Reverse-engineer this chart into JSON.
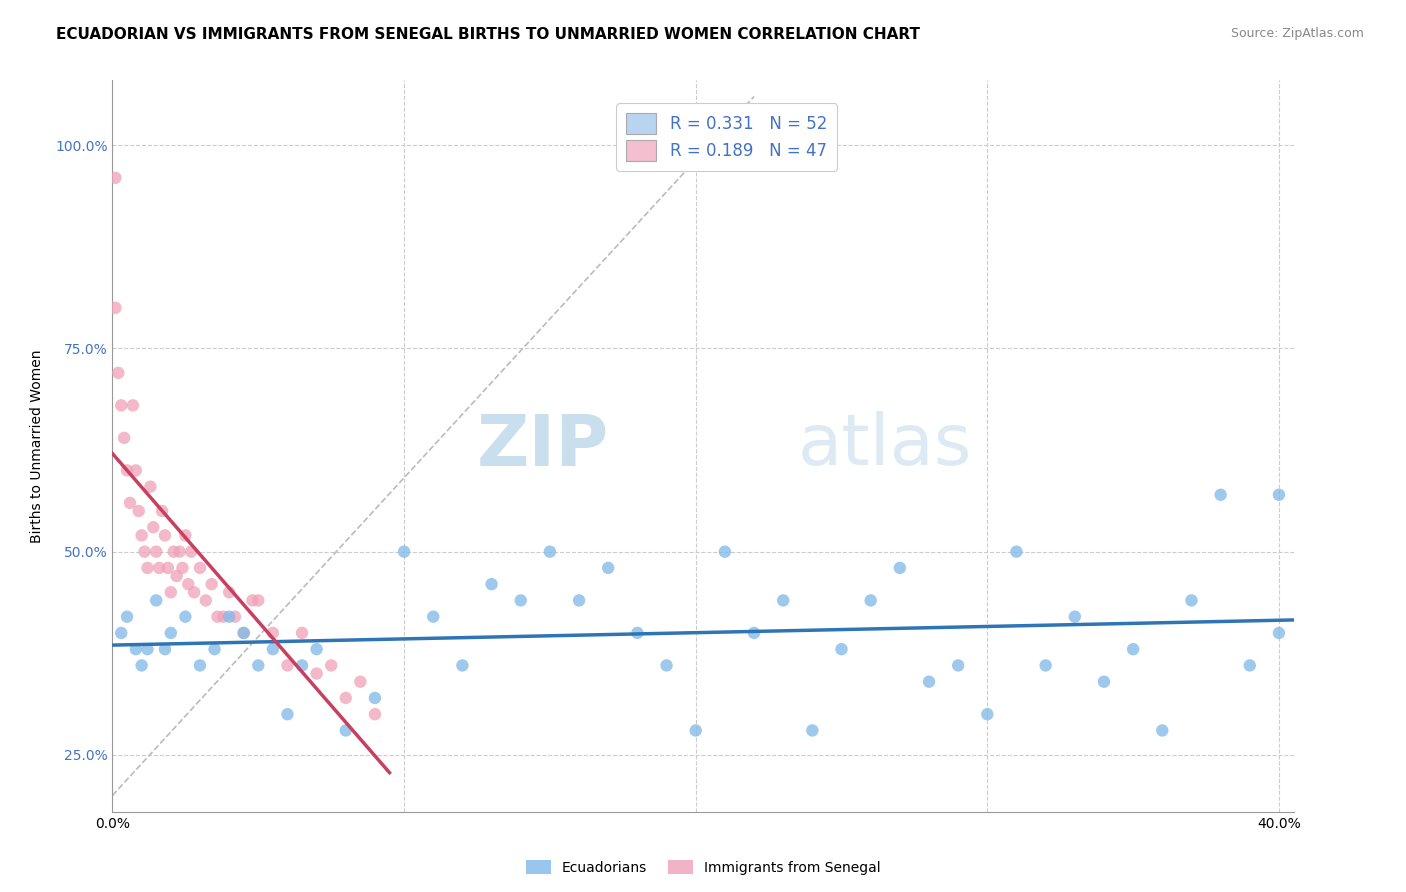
{
  "title": "ECUADORIAN VS IMMIGRANTS FROM SENEGAL BIRTHS TO UNMARRIED WOMEN CORRELATION CHART",
  "source": "Source: ZipAtlas.com",
  "ylabel": "Births to Unmarried Women",
  "background_color": "#ffffff",
  "grid_color": "#cccccc",
  "title_fontsize": 11,
  "axis_label_fontsize": 10,
  "tick_fontsize": 10,
  "ecuadorians_color": "#7eb8e8",
  "senegal_color": "#f0a0b8",
  "regression_ecuadorians_color": "#2e75b6",
  "regression_senegal_color": "#c84060",
  "legend_fill_ec": "#b8d4f0",
  "legend_fill_sen": "#f4c0d0",
  "xlim": [
    0.0,
    0.405
  ],
  "ylim": [
    0.18,
    1.08
  ],
  "watermark_text": "ZIPatlas",
  "watermark_color": "#c8dff0",
  "ecuadorians_x": [
    0.003,
    0.005,
    0.008,
    0.01,
    0.012,
    0.015,
    0.018,
    0.02,
    0.025,
    0.03,
    0.035,
    0.04,
    0.045,
    0.05,
    0.055,
    0.06,
    0.065,
    0.07,
    0.08,
    0.09,
    0.1,
    0.11,
    0.12,
    0.13,
    0.14,
    0.15,
    0.16,
    0.17,
    0.18,
    0.19,
    0.2,
    0.21,
    0.22,
    0.23,
    0.24,
    0.25,
    0.26,
    0.27,
    0.28,
    0.29,
    0.3,
    0.31,
    0.32,
    0.33,
    0.34,
    0.35,
    0.36,
    0.37,
    0.38,
    0.39,
    0.4,
    0.4
  ],
  "ecuadorians_y": [
    0.4,
    0.42,
    0.38,
    0.36,
    0.38,
    0.44,
    0.38,
    0.4,
    0.42,
    0.36,
    0.38,
    0.42,
    0.4,
    0.36,
    0.38,
    0.3,
    0.36,
    0.38,
    0.28,
    0.32,
    0.5,
    0.42,
    0.36,
    0.46,
    0.44,
    0.5,
    0.44,
    0.48,
    0.4,
    0.36,
    0.28,
    0.5,
    0.4,
    0.44,
    0.28,
    0.38,
    0.44,
    0.48,
    0.34,
    0.36,
    0.3,
    0.5,
    0.36,
    0.42,
    0.34,
    0.38,
    0.28,
    0.44,
    0.57,
    0.36,
    0.57,
    0.4
  ],
  "senegal_x": [
    0.001,
    0.001,
    0.002,
    0.003,
    0.004,
    0.005,
    0.006,
    0.007,
    0.008,
    0.009,
    0.01,
    0.011,
    0.012,
    0.013,
    0.014,
    0.015,
    0.016,
    0.017,
    0.018,
    0.019,
    0.02,
    0.021,
    0.022,
    0.023,
    0.024,
    0.025,
    0.026,
    0.027,
    0.028,
    0.03,
    0.032,
    0.034,
    0.036,
    0.038,
    0.04,
    0.042,
    0.045,
    0.048,
    0.05,
    0.055,
    0.06,
    0.065,
    0.07,
    0.075,
    0.08,
    0.085,
    0.09
  ],
  "senegal_y": [
    0.96,
    0.8,
    0.72,
    0.68,
    0.64,
    0.6,
    0.56,
    0.68,
    0.6,
    0.55,
    0.52,
    0.5,
    0.48,
    0.58,
    0.53,
    0.5,
    0.48,
    0.55,
    0.52,
    0.48,
    0.45,
    0.5,
    0.47,
    0.5,
    0.48,
    0.52,
    0.46,
    0.5,
    0.45,
    0.48,
    0.44,
    0.46,
    0.42,
    0.42,
    0.45,
    0.42,
    0.4,
    0.44,
    0.44,
    0.4,
    0.36,
    0.4,
    0.35,
    0.36,
    0.32,
    0.34,
    0.3
  ]
}
